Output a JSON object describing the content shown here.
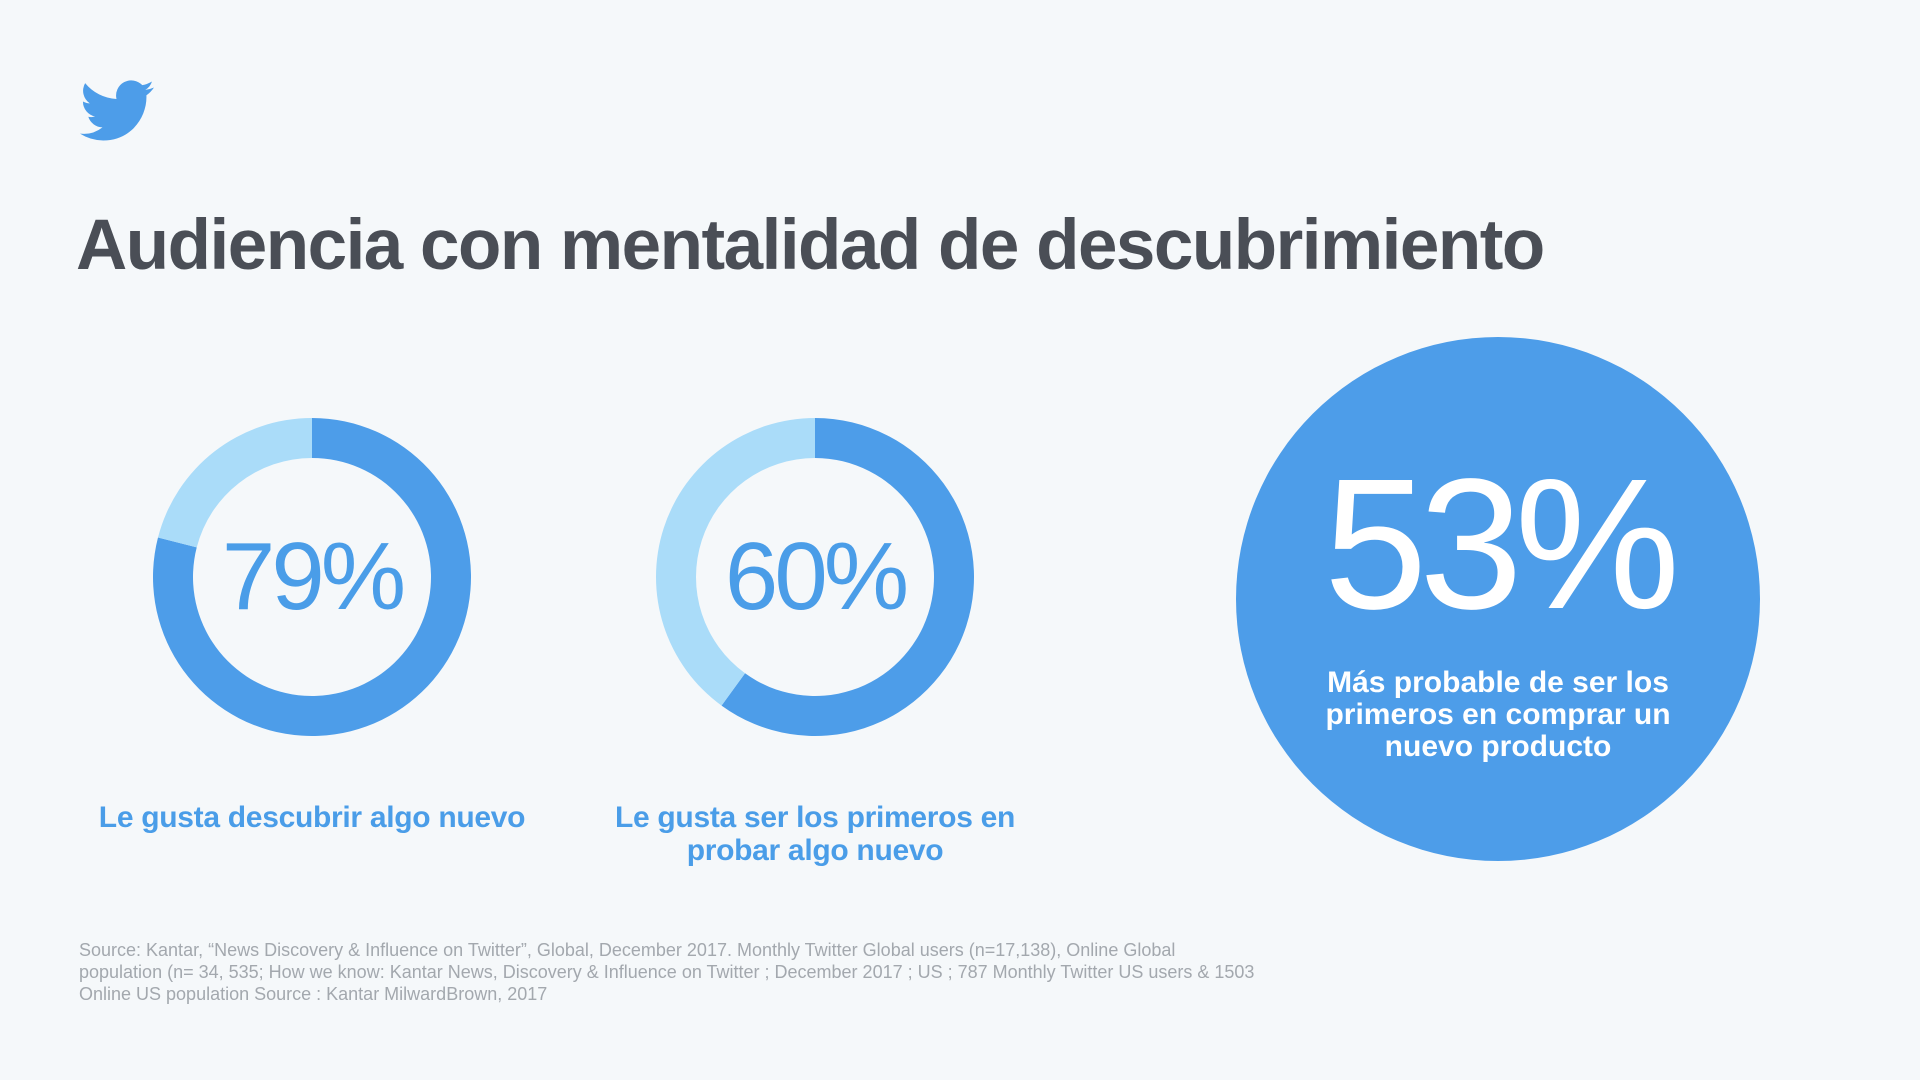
{
  "colors": {
    "primary": "#4d9de9",
    "secondary": "#aadcf9",
    "title": "#4a4e56",
    "source": "#a3a8ae",
    "background": "#f5f8fa"
  },
  "logo": {
    "icon": "twitter-bird-icon"
  },
  "title": "Audiencia con mentalidad de descubrimiento",
  "chart_data": [
    {
      "type": "pie",
      "values": [
        79,
        21
      ],
      "label": "79%",
      "caption": "Le gusta descubrir algo nuevo"
    },
    {
      "type": "pie",
      "values": [
        60,
        40
      ],
      "label": "60%",
      "caption": "Le gusta ser los primeros en probar algo nuevo"
    }
  ],
  "highlight": {
    "value": "53%",
    "caption": "Más probable de ser los primeros en comprar un nuevo producto"
  },
  "source": "Source: Kantar, “News Discovery & Influence on Twitter”, Global, December 2017. Monthly Twitter Global users (n=17,138), Online Global population (n= 34, 535; How we know: Kantar News, Discovery & Influence on Twitter ; December 2017 ; US ; 787 Monthly Twitter US users & 1503 Online US population Source : Kantar MilwardBrown, 2017"
}
